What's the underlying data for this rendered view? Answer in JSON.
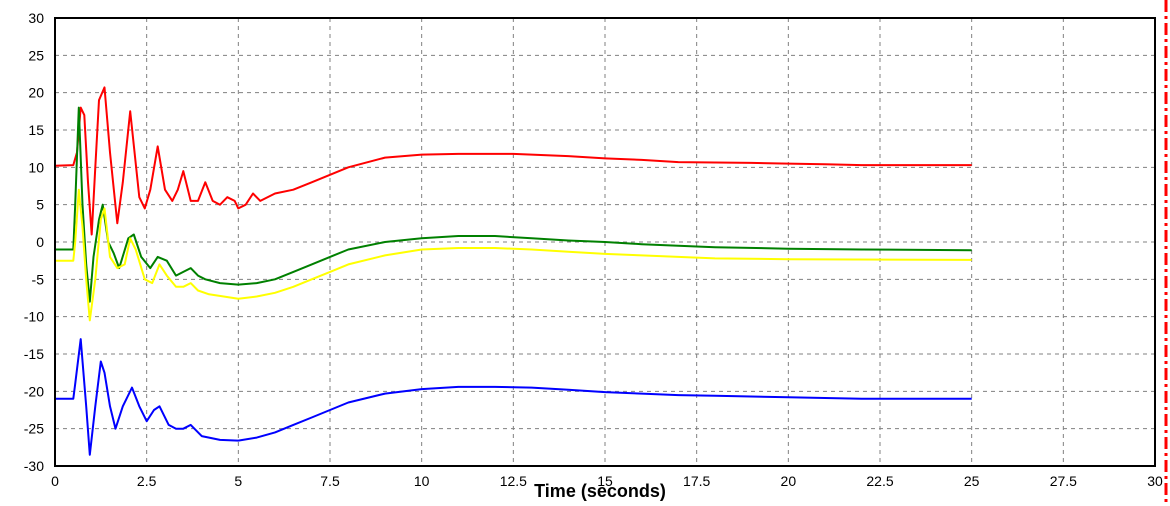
{
  "chart_data": {
    "type": "line",
    "title": "",
    "xlabel": "Time (seconds)",
    "ylabel": "",
    "xlim": [
      0,
      30
    ],
    "ylim": [
      -30,
      30
    ],
    "x_ticks": [
      "0",
      "2.5",
      "5",
      "7.5",
      "10",
      "12.5",
      "15",
      "17.5",
      "20",
      "22.5",
      "25",
      "27.5",
      "30"
    ],
    "y_ticks": [
      "30",
      "25",
      "20",
      "15",
      "10",
      "5",
      "0",
      "-5",
      "-10",
      "-15",
      "-20",
      "-25",
      "-30"
    ],
    "grid": true,
    "series": [
      {
        "color": "#ff0000",
        "points": [
          [
            0,
            10.2
          ],
          [
            0.5,
            10.3
          ],
          [
            0.6,
            12
          ],
          [
            0.7,
            18
          ],
          [
            0.8,
            17
          ],
          [
            0.9,
            8
          ],
          [
            1.0,
            1
          ],
          [
            1.1,
            10
          ],
          [
            1.2,
            19
          ],
          [
            1.35,
            20.7
          ],
          [
            1.5,
            12
          ],
          [
            1.7,
            2.5
          ],
          [
            1.85,
            8
          ],
          [
            2.05,
            17.5
          ],
          [
            2.3,
            6
          ],
          [
            2.45,
            4.5
          ],
          [
            2.6,
            7
          ],
          [
            2.8,
            12.8
          ],
          [
            3.0,
            7
          ],
          [
            3.2,
            5.5
          ],
          [
            3.35,
            7
          ],
          [
            3.5,
            9.5
          ],
          [
            3.7,
            5.5
          ],
          [
            3.9,
            5.5
          ],
          [
            4.1,
            8
          ],
          [
            4.3,
            5.5
          ],
          [
            4.5,
            5
          ],
          [
            4.7,
            6
          ],
          [
            4.9,
            5.5
          ],
          [
            5.0,
            4.5
          ],
          [
            5.2,
            5
          ],
          [
            5.4,
            6.5
          ],
          [
            5.6,
            5.5
          ],
          [
            6.0,
            6.5
          ],
          [
            6.5,
            7
          ],
          [
            7,
            8
          ],
          [
            7.5,
            9
          ],
          [
            8,
            10
          ],
          [
            9,
            11.3
          ],
          [
            10,
            11.7
          ],
          [
            11,
            11.8
          ],
          [
            12.5,
            11.8
          ],
          [
            14,
            11.5
          ],
          [
            15,
            11.2
          ],
          [
            16,
            11.0
          ],
          [
            17,
            10.7
          ],
          [
            19,
            10.6
          ],
          [
            20,
            10.5
          ],
          [
            21,
            10.4
          ],
          [
            22,
            10.3
          ],
          [
            25,
            10.3
          ]
        ]
      },
      {
        "color": "#008000",
        "points": [
          [
            0,
            -1
          ],
          [
            0.5,
            -1
          ],
          [
            0.55,
            5
          ],
          [
            0.65,
            18
          ],
          [
            0.75,
            5
          ],
          [
            0.85,
            -3
          ],
          [
            0.95,
            -8
          ],
          [
            1.05,
            -2
          ],
          [
            1.2,
            3
          ],
          [
            1.3,
            5
          ],
          [
            1.45,
            0
          ],
          [
            1.6,
            -1.5
          ],
          [
            1.75,
            -3.5
          ],
          [
            2.0,
            0.5
          ],
          [
            2.15,
            1
          ],
          [
            2.35,
            -2
          ],
          [
            2.6,
            -3.5
          ],
          [
            2.8,
            -2
          ],
          [
            3.05,
            -2.5
          ],
          [
            3.3,
            -4.5
          ],
          [
            3.5,
            -4
          ],
          [
            3.7,
            -3.5
          ],
          [
            3.9,
            -4.5
          ],
          [
            4.1,
            -5
          ],
          [
            4.5,
            -5.5
          ],
          [
            5,
            -5.7
          ],
          [
            5.5,
            -5.5
          ],
          [
            6,
            -5
          ],
          [
            6.5,
            -4
          ],
          [
            7,
            -3
          ],
          [
            7.5,
            -2
          ],
          [
            8,
            -1
          ],
          [
            9,
            0
          ],
          [
            10,
            0.5
          ],
          [
            11,
            0.8
          ],
          [
            12,
            0.8
          ],
          [
            13,
            0.5
          ],
          [
            14,
            0.2
          ],
          [
            15,
            0
          ],
          [
            16,
            -0.3
          ],
          [
            17,
            -0.5
          ],
          [
            18,
            -0.7
          ],
          [
            20,
            -0.9
          ],
          [
            22,
            -1
          ],
          [
            25,
            -1.1
          ]
        ]
      },
      {
        "color": "#ffff00",
        "points": [
          [
            0,
            -2.5
          ],
          [
            0.5,
            -2.5
          ],
          [
            0.55,
            0
          ],
          [
            0.65,
            7
          ],
          [
            0.75,
            2
          ],
          [
            0.85,
            -5
          ],
          [
            0.95,
            -10.5
          ],
          [
            1.1,
            -5
          ],
          [
            1.25,
            3
          ],
          [
            1.35,
            4.5
          ],
          [
            1.5,
            -2
          ],
          [
            1.7,
            -3.5
          ],
          [
            1.9,
            -3
          ],
          [
            2.05,
            0.5
          ],
          [
            2.2,
            -1
          ],
          [
            2.45,
            -5
          ],
          [
            2.65,
            -5.5
          ],
          [
            2.85,
            -3
          ],
          [
            3.05,
            -4.5
          ],
          [
            3.3,
            -6
          ],
          [
            3.5,
            -6
          ],
          [
            3.7,
            -5.5
          ],
          [
            3.9,
            -6.5
          ],
          [
            4.2,
            -7
          ],
          [
            5,
            -7.6
          ],
          [
            5.5,
            -7.3
          ],
          [
            6,
            -6.8
          ],
          [
            6.5,
            -6
          ],
          [
            7,
            -5
          ],
          [
            7.5,
            -4
          ],
          [
            8,
            -3
          ],
          [
            9,
            -1.8
          ],
          [
            10,
            -1
          ],
          [
            11,
            -0.8
          ],
          [
            12,
            -0.8
          ],
          [
            13,
            -1
          ],
          [
            14,
            -1.3
          ],
          [
            15,
            -1.6
          ],
          [
            16,
            -1.8
          ],
          [
            17,
            -2
          ],
          [
            18,
            -2.2
          ],
          [
            20,
            -2.3
          ],
          [
            25,
            -2.4
          ]
        ]
      },
      {
        "color": "#0000ff",
        "points": [
          [
            0,
            -21
          ],
          [
            0.5,
            -21
          ],
          [
            0.55,
            -19
          ],
          [
            0.7,
            -13
          ],
          [
            0.85,
            -22
          ],
          [
            0.95,
            -28.5
          ],
          [
            1.1,
            -22
          ],
          [
            1.25,
            -16
          ],
          [
            1.35,
            -17.5
          ],
          [
            1.5,
            -22
          ],
          [
            1.65,
            -25
          ],
          [
            1.85,
            -22
          ],
          [
            2.1,
            -19.5
          ],
          [
            2.3,
            -22
          ],
          [
            2.5,
            -24
          ],
          [
            2.7,
            -22.5
          ],
          [
            2.85,
            -22
          ],
          [
            3.1,
            -24.5
          ],
          [
            3.3,
            -25
          ],
          [
            3.5,
            -25
          ],
          [
            3.7,
            -24.5
          ],
          [
            4.0,
            -26
          ],
          [
            4.5,
            -26.5
          ],
          [
            5,
            -26.6
          ],
          [
            5.5,
            -26.2
          ],
          [
            6,
            -25.5
          ],
          [
            6.5,
            -24.5
          ],
          [
            7,
            -23.5
          ],
          [
            7.5,
            -22.5
          ],
          [
            8,
            -21.5
          ],
          [
            9,
            -20.3
          ],
          [
            10,
            -19.7
          ],
          [
            11,
            -19.4
          ],
          [
            12,
            -19.4
          ],
          [
            13,
            -19.5
          ],
          [
            14,
            -19.8
          ],
          [
            15,
            -20.1
          ],
          [
            16,
            -20.3
          ],
          [
            17,
            -20.5
          ],
          [
            18,
            -20.6
          ],
          [
            20,
            -20.8
          ],
          [
            22,
            -21
          ],
          [
            25,
            -21
          ]
        ]
      }
    ]
  }
}
